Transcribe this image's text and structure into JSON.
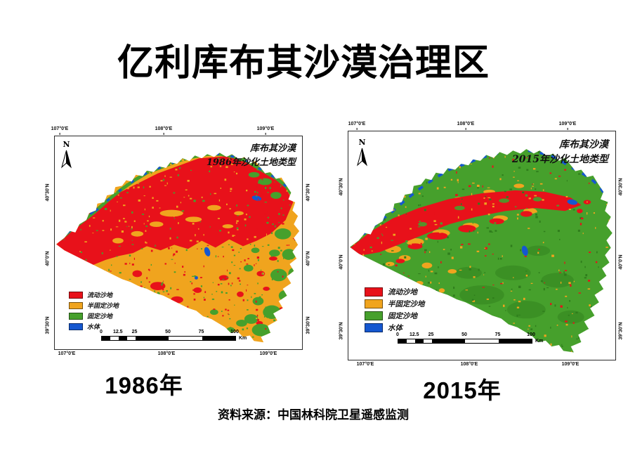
{
  "page": {
    "title": "亿利库布其沙漠治理区",
    "source_note": "资料来源：中国林科院卫星遥感监测"
  },
  "colors": {
    "mobile_sand": "#e8111a",
    "semi_fixed_sand": "#f0a41e",
    "fixed_sand": "#46a02c",
    "fixed_sand_dark": "#2f7d1c",
    "water": "#1557d0",
    "frame": "#2b2b2b"
  },
  "legend": {
    "items": [
      {
        "label": "流动沙地",
        "color": "#e8111a"
      },
      {
        "label": "半固定沙地",
        "color": "#f0a41e"
      },
      {
        "label": "固定沙地",
        "color": "#46a02c"
      },
      {
        "label": "水体",
        "color": "#1557d0"
      }
    ]
  },
  "scalebar": {
    "tick_labels": [
      "0",
      "12.5",
      "25",
      "50",
      "75",
      "100"
    ],
    "tick_values": [
      0,
      12.5,
      25,
      50,
      75,
      100
    ],
    "unit": "Km"
  },
  "maps": [
    {
      "title_line1": "库布其沙漠",
      "title_line2": "1986年沙化土地类型",
      "caption": "1986年",
      "north_label": "N",
      "lon_labels": [
        "107°0'E",
        "108°0'E",
        "109°0'E"
      ],
      "lat_labels": [
        "40°30'N",
        "40°0'N",
        "39°30'N"
      ]
    },
    {
      "title_line1": "库布其沙漠",
      "title_line2": "2015年沙化土地类型",
      "caption": "2015年",
      "north_label": "N",
      "lon_labels": [
        "107°0'E",
        "108°0'E",
        "109°0'E"
      ],
      "lat_labels": [
        "40°30'N",
        "40°0'N",
        "39°30'N"
      ]
    }
  ]
}
